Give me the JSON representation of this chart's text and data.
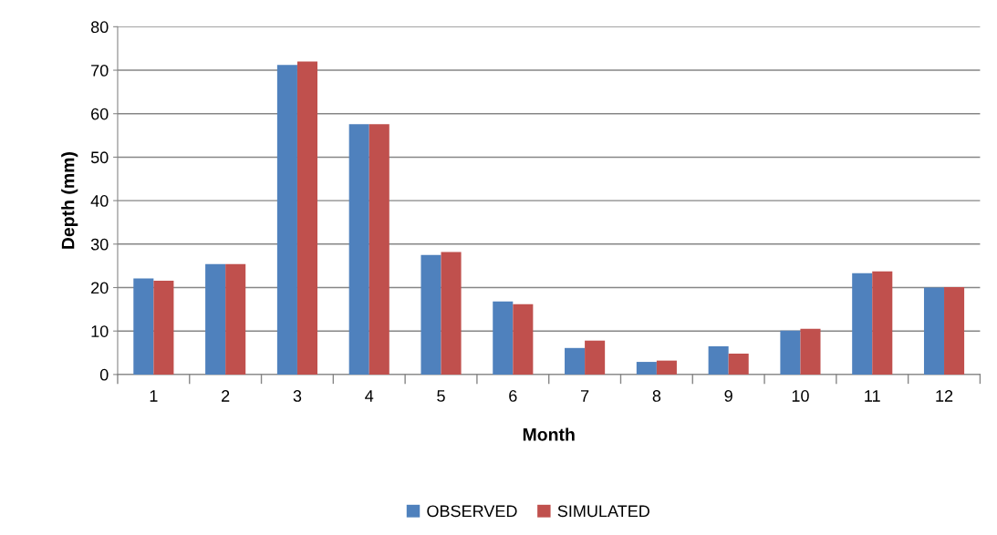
{
  "chart_data": {
    "type": "bar",
    "xlabel": "Month",
    "ylabel": "Depth (mm)",
    "categories": [
      "1",
      "2",
      "3",
      "4",
      "5",
      "6",
      "7",
      "8",
      "9",
      "10",
      "11",
      "12"
    ],
    "series": [
      {
        "name": "OBSERVED",
        "color": "#4f81bd",
        "values": [
          22.1,
          25.4,
          71.2,
          57.6,
          27.5,
          16.8,
          6.1,
          2.9,
          6.5,
          10.1,
          23.3,
          20.0
        ]
      },
      {
        "name": "SIMULATED",
        "color": "#c0504d",
        "values": [
          21.6,
          25.4,
          72.0,
          57.6,
          28.2,
          16.2,
          7.8,
          3.2,
          4.8,
          10.5,
          23.7,
          20.1
        ]
      }
    ],
    "ylim": [
      0,
      80
    ],
    "yticks": [
      0,
      10,
      20,
      30,
      40,
      50,
      60,
      70,
      80
    ],
    "grid": "y",
    "legend": "bottom"
  }
}
